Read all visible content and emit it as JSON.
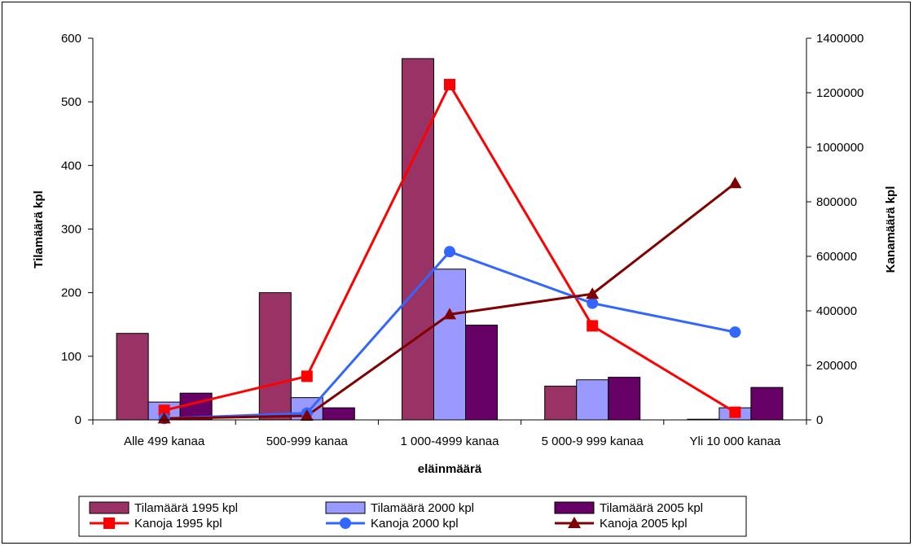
{
  "chart_data": {
    "type": "bar",
    "categories": [
      "Alle 499 kanaa",
      "500-999 kanaa",
      "1 000-4999 kanaa",
      "5 000-9 999 kanaa",
      "Yli 10 000 kanaa"
    ],
    "xlabel": "eläinmäärä",
    "ylabel": "Tilamäärä kpl",
    "y2label": "Kanamäärä kpl",
    "ylim": [
      0,
      600
    ],
    "y2lim": [
      0,
      1400000
    ],
    "yticks": [
      "0",
      "100",
      "200",
      "300",
      "400",
      "500",
      "600"
    ],
    "y2ticks": [
      "0",
      "200000",
      "400000",
      "600000",
      "800000",
      "1000000",
      "1200000",
      "1400000"
    ],
    "grid": false,
    "legend_position": "bottom",
    "bar_series": [
      {
        "name": "Tilamäärä 1995 kpl",
        "color": "#993366",
        "values": [
          136,
          200,
          568,
          53,
          1
        ]
      },
      {
        "name": "Tilamäärä 2000 kpl",
        "color": "#9999ff",
        "values": [
          28,
          35,
          237,
          63,
          19
        ]
      },
      {
        "name": "Tilamäärä 2005 kpl",
        "color": "#660066",
        "values": [
          42,
          19,
          149,
          67,
          51
        ]
      }
    ],
    "line_series": [
      {
        "name": "Kanoja 1995 kpl",
        "color": "#ff0000",
        "marker": "square",
        "values": [
          35000,
          160000,
          1230000,
          345000,
          28000
        ]
      },
      {
        "name": "Kanoja 2000 kpl",
        "color": "#3366ff",
        "marker": "circle",
        "values": [
          5000,
          25000,
          617000,
          428000,
          322000
        ]
      },
      {
        "name": "Kanoja 2005 kpl",
        "color": "#800000",
        "marker": "triangle",
        "values": [
          5000,
          15000,
          387000,
          462000,
          868000
        ]
      }
    ]
  }
}
